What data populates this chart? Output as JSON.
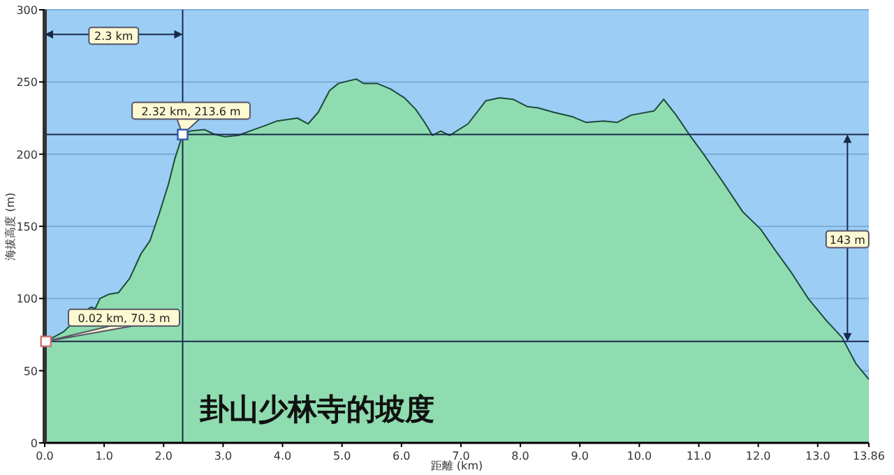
{
  "chart_data": {
    "type": "area",
    "title": "卦山少林寺的坡度",
    "xlabel": "距離 (km)",
    "ylabel": "海拔高度 (m)",
    "xlim": [
      0,
      13.86
    ],
    "ylim": [
      0,
      300
    ],
    "xticks": [
      {
        "value": 0,
        "label": "0.0"
      },
      {
        "value": 1,
        "label": "1.0"
      },
      {
        "value": 2,
        "label": "2.0"
      },
      {
        "value": 3,
        "label": "3.0"
      },
      {
        "value": 4,
        "label": "4.0"
      },
      {
        "value": 5,
        "label": "5.0"
      },
      {
        "value": 6,
        "label": "6.0"
      },
      {
        "value": 7,
        "label": "7.0"
      },
      {
        "value": 8,
        "label": "8.0"
      },
      {
        "value": 9,
        "label": "9.0"
      },
      {
        "value": 10,
        "label": "10.0"
      },
      {
        "value": 11,
        "label": "11.0"
      },
      {
        "value": 12,
        "label": "12.0"
      },
      {
        "value": 13,
        "label": "13.0"
      },
      13.86
    ],
    "yticks": [
      0,
      50,
      100,
      150,
      200,
      250,
      300
    ],
    "grid": "y",
    "marker": "none",
    "series": [
      {
        "color": "#8fdcb0",
        "x": [
          0.02,
          0.32,
          0.66,
          0.78,
          0.85,
          0.93,
          1.08,
          1.24,
          1.43,
          1.62,
          1.77,
          1.92,
          2.08,
          2.19,
          2.32,
          2.45,
          2.69,
          2.84,
          3.03,
          3.26,
          3.45,
          3.72,
          3.91,
          4.25,
          4.43,
          4.6,
          4.79,
          4.94,
          5.24,
          5.36,
          5.59,
          5.82,
          6.05,
          6.24,
          6.39,
          6.52,
          6.66,
          6.81,
          7.12,
          7.42,
          7.65,
          7.88,
          8.11,
          8.3,
          8.56,
          8.87,
          9.1,
          9.4,
          9.63,
          9.86,
          10.25,
          10.41,
          10.62,
          10.85,
          11.08,
          11.4,
          11.74,
          12.04,
          12.31,
          12.54,
          12.84,
          13.14,
          13.41,
          13.64,
          13.86
        ],
        "values": [
          70.3,
          77,
          91,
          94,
          93,
          100,
          103,
          104,
          114,
          131,
          140,
          158,
          179,
          197,
          213.6,
          216,
          217,
          214,
          212,
          213,
          216,
          220,
          223,
          225,
          221,
          229,
          244,
          249,
          252,
          249,
          249,
          245,
          239,
          231,
          222,
          213,
          216,
          213,
          221,
          237,
          239,
          238,
          233,
          232,
          229,
          226,
          222,
          223,
          222,
          227,
          230,
          238,
          227,
          213,
          200,
          181,
          160,
          148,
          132,
          119,
          100,
          85,
          73,
          55,
          44
        ]
      }
    ],
    "ref_lines": [
      {
        "axis": "x",
        "value": 2.32,
        "color": "#1a2a4a"
      },
      {
        "axis": "y",
        "value": 213.6,
        "color": "#1a2a4a"
      },
      {
        "axis": "y",
        "value": 70.3,
        "color": "#1a2a4a"
      }
    ],
    "annotations": [
      {
        "text": "2.32 km, 213.6 m",
        "x": 2.32,
        "y": 213.6
      },
      {
        "text": "0.02 km, 70.3 m",
        "x": 0.02,
        "y": 70.3
      },
      {
        "text": "2.3 km",
        "x": 1.16,
        "y": 283
      },
      {
        "text": "143 m",
        "x": 13.5,
        "y": 142
      }
    ]
  }
}
